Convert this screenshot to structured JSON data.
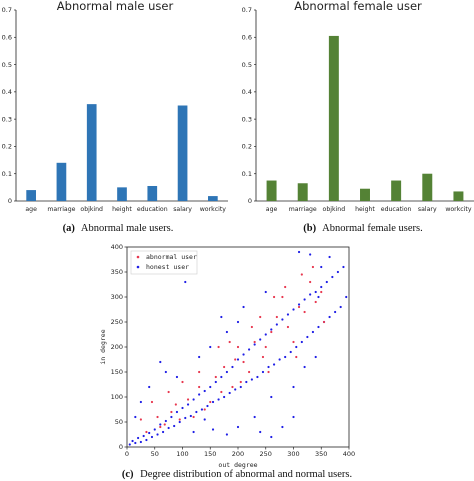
{
  "colors": {
    "blue_bar": "#2e75b6",
    "green_bar": "#548235",
    "abnormal": "#e8384f",
    "honest": "#1f1fe6"
  },
  "captions": {
    "a_label": "(a)",
    "a_text": "Abnormal male users.",
    "b_label": "(b)",
    "b_text": "Abnormal female users.",
    "c_label": "(c)",
    "c_text": "Degree distribution of abnormal and normal users."
  },
  "chart_data": [
    {
      "type": "bar",
      "title": "Abnormal male user",
      "categories": [
        "age",
        "marriage",
        "objkind",
        "height",
        "education",
        "salary",
        "workcity"
      ],
      "values": [
        0.04,
        0.14,
        0.355,
        0.05,
        0.055,
        0.35,
        0.018
      ],
      "ylim": [
        0,
        0.7
      ],
      "yticks": [
        "0",
        "0.1",
        "0.2",
        "0.3",
        "0.4",
        "0.5",
        "0.6",
        "0.7"
      ],
      "color": "#2e75b6"
    },
    {
      "type": "bar",
      "title": "Abnormal female user",
      "categories": [
        "age",
        "marriage",
        "objkind",
        "height",
        "education",
        "salary",
        "workcity"
      ],
      "values": [
        0.075,
        0.065,
        0.605,
        0.045,
        0.075,
        0.1,
        0.035
      ],
      "ylim": [
        0,
        0.7
      ],
      "yticks": [
        "0",
        "0.1",
        "0.2",
        "0.3",
        "0.4",
        "0.5",
        "0.6",
        "0.7"
      ],
      "color": "#548235"
    },
    {
      "type": "scatter",
      "xlabel": "out degree",
      "ylabel": "in degree",
      "xlim": [
        0,
        400
      ],
      "ylim": [
        0,
        400
      ],
      "xticks": [
        "0",
        "50",
        "100",
        "150",
        "200",
        "250",
        "300",
        "350",
        "400"
      ],
      "yticks": [
        "0",
        "50",
        "100",
        "150",
        "200",
        "250",
        "300",
        "350",
        "400"
      ],
      "legend_position": "top-left",
      "series": [
        {
          "name": "abnormal user",
          "color": "#e8384f",
          "points": [
            [
              35,
              30
            ],
            [
              60,
              40
            ],
            [
              80,
              70
            ],
            [
              95,
              55
            ],
            [
              110,
              95
            ],
            [
              130,
              120
            ],
            [
              150,
              90
            ],
            [
              160,
              140
            ],
            [
              175,
              160
            ],
            [
              190,
              120
            ],
            [
              200,
              200
            ],
            [
              210,
              170
            ],
            [
              220,
              150
            ],
            [
              230,
              210
            ],
            [
              240,
              260
            ],
            [
              250,
              200
            ],
            [
              260,
              230
            ],
            [
              270,
              260
            ],
            [
              280,
              300
            ],
            [
              290,
              240
            ],
            [
              300,
              210
            ],
            [
              310,
              280
            ],
            [
              320,
              270
            ],
            [
              330,
              330
            ],
            [
              335,
              360
            ],
            [
              340,
              290
            ],
            [
              350,
              310
            ],
            [
              355,
              250
            ],
            [
              265,
              300
            ],
            [
              245,
              180
            ],
            [
              225,
              240
            ],
            [
              205,
              130
            ],
            [
              185,
              210
            ],
            [
              170,
              110
            ],
            [
              140,
              75
            ],
            [
              120,
              60
            ],
            [
              100,
              130
            ],
            [
              75,
              110
            ],
            [
              55,
              60
            ],
            [
              45,
              90
            ],
            [
              25,
              55
            ],
            [
              285,
              320
            ],
            [
              315,
              345
            ],
            [
              305,
              180
            ],
            [
              255,
              150
            ],
            [
              195,
              175
            ],
            [
              165,
              200
            ],
            [
              130,
              150
            ],
            [
              88,
              85
            ],
            [
              68,
              45
            ]
          ]
        },
        {
          "name": "honest user",
          "color": "#1f1fe6",
          "points": [
            [
              5,
              5
            ],
            [
              10,
              12
            ],
            [
              15,
              8
            ],
            [
              20,
              18
            ],
            [
              25,
              10
            ],
            [
              30,
              22
            ],
            [
              35,
              14
            ],
            [
              40,
              28
            ],
            [
              45,
              20
            ],
            [
              50,
              35
            ],
            [
              55,
              25
            ],
            [
              60,
              45
            ],
            [
              65,
              30
            ],
            [
              70,
              52
            ],
            [
              75,
              38
            ],
            [
              80,
              60
            ],
            [
              85,
              42
            ],
            [
              90,
              70
            ],
            [
              95,
              50
            ],
            [
              100,
              78
            ],
            [
              105,
              58
            ],
            [
              110,
              85
            ],
            [
              115,
              62
            ],
            [
              120,
              95
            ],
            [
              125,
              70
            ],
            [
              130,
              105
            ],
            [
              135,
              75
            ],
            [
              140,
              112
            ],
            [
              145,
              82
            ],
            [
              150,
              120
            ],
            [
              155,
              90
            ],
            [
              160,
              130
            ],
            [
              165,
              95
            ],
            [
              170,
              140
            ],
            [
              175,
              100
            ],
            [
              180,
              150
            ],
            [
              185,
              108
            ],
            [
              190,
              160
            ],
            [
              195,
              115
            ],
            [
              200,
              175
            ],
            [
              205,
              120
            ],
            [
              210,
              185
            ],
            [
              215,
              130
            ],
            [
              220,
              195
            ],
            [
              225,
              135
            ],
            [
              230,
              205
            ],
            [
              235,
              140
            ],
            [
              240,
              215
            ],
            [
              245,
              150
            ],
            [
              250,
              225
            ],
            [
              255,
              160
            ],
            [
              260,
              235
            ],
            [
              265,
              165
            ],
            [
              270,
              245
            ],
            [
              275,
              175
            ],
            [
              280,
              255
            ],
            [
              285,
              180
            ],
            [
              290,
              265
            ],
            [
              295,
              190
            ],
            [
              300,
              275
            ],
            [
              305,
              200
            ],
            [
              310,
              285
            ],
            [
              315,
              210
            ],
            [
              320,
              295
            ],
            [
              325,
              220
            ],
            [
              330,
              305
            ],
            [
              335,
              230
            ],
            [
              340,
              310
            ],
            [
              345,
              240
            ],
            [
              350,
              320
            ],
            [
              355,
              250
            ],
            [
              360,
              330
            ],
            [
              365,
              260
            ],
            [
              370,
              340
            ],
            [
              375,
              270
            ],
            [
              380,
              350
            ],
            [
              385,
              280
            ],
            [
              390,
              360
            ],
            [
              395,
              300
            ],
            [
              105,
              330
            ],
            [
              310,
              390
            ],
            [
              330,
              385
            ],
            [
              345,
              300
            ],
            [
              300,
              60
            ],
            [
              280,
              40
            ],
            [
              260,
              20
            ],
            [
              240,
              30
            ],
            [
              230,
              60
            ],
            [
              200,
              40
            ],
            [
              180,
              25
            ],
            [
              155,
              35
            ],
            [
              140,
              55
            ],
            [
              120,
              30
            ],
            [
              60,
              170
            ],
            [
              40,
              120
            ],
            [
              25,
              90
            ],
            [
              15,
              60
            ],
            [
              70,
              150
            ],
            [
              90,
              140
            ],
            [
              260,
              100
            ],
            [
              300,
              120
            ],
            [
              320,
              160
            ],
            [
              340,
              180
            ],
            [
              200,
              250
            ],
            [
              180,
              230
            ],
            [
              150,
              200
            ],
            [
              130,
              180
            ],
            [
              170,
              260
            ],
            [
              210,
              280
            ],
            [
              250,
              310
            ],
            [
              350,
              360
            ],
            [
              365,
              380
            ]
          ]
        }
      ]
    }
  ]
}
